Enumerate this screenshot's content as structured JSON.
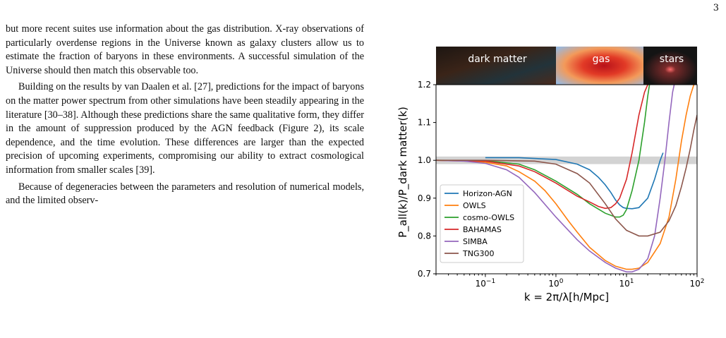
{
  "page": {
    "number": "3"
  },
  "text": {
    "p1": "but more recent suites use information about the gas distribution. X-ray observations of particularly overdense regions in the Universe known as galaxy clusters allow us to estimate the fraction of baryons in these environments. A successful simulation of the Universe should then match this observable too.",
    "p2": "Building on the results by van Daalen et al. [27], predictions for the impact of baryons on the matter power spectrum from other simulations have been steadily appearing in the literature [30–38]. Although these predictions share the same qualitative form, they differ in the amount of suppression produced by the AGN feedback (Figure 2), its scale dependence, and the time evolution. These differences are larger than the expected precision of upcoming experiments, compromising our ability to extract cosmological information from smaller scales [39].",
    "p3": "Because of degeneracies between the parameters and resolution of numerical models, and the limited observ-"
  },
  "figure": {
    "banner": {
      "labels": [
        "dark matter",
        "gas",
        "stars"
      ]
    }
  },
  "chart_data": {
    "type": "line",
    "xscale": "log",
    "xlim": [
      0.02,
      100
    ],
    "ylim": [
      0.7,
      1.2
    ],
    "xlabel": "k = 2π/λ[h/Mpc]",
    "ylabel": "P_all(k)/P_dark matter(k)",
    "xticks": [
      {
        "v": 0.1,
        "base": "10",
        "exp": "−1"
      },
      {
        "v": 1,
        "base": "10",
        "exp": "0"
      },
      {
        "v": 10,
        "base": "10",
        "exp": "1"
      },
      {
        "v": 100,
        "base": "10",
        "exp": "2"
      }
    ],
    "yticks": [
      0.7,
      0.8,
      0.9,
      1.0,
      1.1,
      1.2
    ],
    "band": [
      0.99,
      1.01
    ],
    "band_color": "#d3d3d3",
    "legend_position": "lower-left",
    "series": [
      {
        "name": "Horizon-AGN",
        "color": "#1f77b4",
        "x": [
          0.1,
          0.3,
          1,
          2,
          3,
          4,
          5,
          6,
          7,
          8,
          9,
          10,
          12,
          15,
          20,
          25,
          30,
          33
        ],
        "y": [
          1.007,
          1.007,
          1.002,
          0.99,
          0.975,
          0.955,
          0.935,
          0.915,
          0.895,
          0.882,
          0.875,
          0.873,
          0.872,
          0.875,
          0.9,
          0.95,
          1.0,
          1.02
        ]
      },
      {
        "name": "OWLS",
        "color": "#ff7f0e",
        "x": [
          0.02,
          0.05,
          0.1,
          0.2,
          0.3,
          0.5,
          0.7,
          1,
          1.5,
          2,
          3,
          5,
          7,
          10,
          12,
          15,
          20,
          30,
          40,
          50,
          60,
          70,
          80,
          90,
          100
        ],
        "y": [
          1.0,
          0.998,
          0.995,
          0.985,
          0.97,
          0.945,
          0.92,
          0.885,
          0.84,
          0.81,
          0.77,
          0.735,
          0.72,
          0.712,
          0.712,
          0.715,
          0.73,
          0.78,
          0.85,
          0.95,
          1.05,
          1.12,
          1.17,
          1.2,
          1.22
        ]
      },
      {
        "name": "cosmo-OWLS",
        "color": "#2ca02c",
        "x": [
          0.02,
          0.1,
          0.3,
          0.5,
          1,
          2,
          3,
          5,
          7,
          8,
          9,
          10,
          12,
          15,
          18,
          20,
          22
        ],
        "y": [
          1.0,
          0.999,
          0.99,
          0.975,
          0.945,
          0.91,
          0.885,
          0.86,
          0.85,
          0.85,
          0.855,
          0.87,
          0.92,
          1.0,
          1.1,
          1.17,
          1.22
        ]
      },
      {
        "name": "BAHAMAS",
        "color": "#d62728",
        "x": [
          0.02,
          0.1,
          0.3,
          0.5,
          1,
          2,
          3,
          4,
          5,
          6,
          7,
          8,
          10,
          12,
          15,
          18,
          20,
          22
        ],
        "y": [
          1.0,
          0.998,
          0.985,
          0.97,
          0.94,
          0.905,
          0.89,
          0.878,
          0.873,
          0.875,
          0.885,
          0.9,
          0.95,
          1.02,
          1.12,
          1.18,
          1.2,
          1.22
        ]
      },
      {
        "name": "SIMBA",
        "color": "#9467bd",
        "x": [
          0.02,
          0.05,
          0.1,
          0.2,
          0.3,
          0.5,
          1,
          2,
          3,
          5,
          7,
          10,
          12,
          15,
          20,
          25,
          30,
          35,
          40,
          45,
          50
        ],
        "y": [
          1.0,
          0.998,
          0.992,
          0.975,
          0.955,
          0.915,
          0.85,
          0.79,
          0.76,
          0.73,
          0.715,
          0.705,
          0.705,
          0.712,
          0.74,
          0.8,
          0.9,
          1.0,
          1.1,
          1.18,
          1.22
        ]
      },
      {
        "name": "TNG300",
        "color": "#8c564b",
        "x": [
          0.02,
          0.1,
          0.5,
          1,
          2,
          3,
          5,
          7,
          10,
          15,
          20,
          30,
          40,
          50,
          60,
          70,
          80,
          90,
          100
        ],
        "y": [
          1.0,
          1.0,
          0.998,
          0.99,
          0.965,
          0.94,
          0.885,
          0.845,
          0.815,
          0.8,
          0.8,
          0.81,
          0.84,
          0.88,
          0.93,
          0.98,
          1.03,
          1.08,
          1.12
        ]
      }
    ]
  }
}
